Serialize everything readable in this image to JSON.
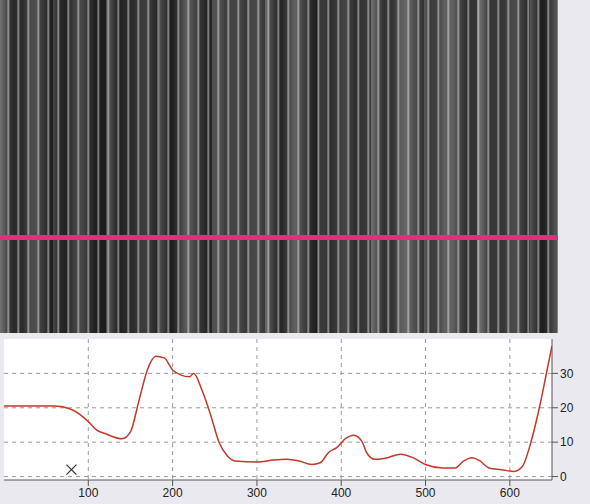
{
  "chart_data": {
    "type": "line",
    "x": [
      0,
      60,
      80,
      100,
      110,
      120,
      140,
      150,
      160,
      170,
      180,
      190,
      200,
      210,
      220,
      225,
      235,
      245,
      255,
      265,
      275,
      300,
      320,
      335,
      350,
      365,
      375,
      385,
      395,
      405,
      415,
      425,
      430,
      440,
      455,
      470,
      485,
      500,
      520,
      535,
      545,
      555,
      565,
      575,
      590,
      605,
      615,
      625,
      635,
      645,
      650
    ],
    "values": [
      20.5,
      20.5,
      19.5,
      16,
      13.5,
      12.5,
      11,
      13,
      22,
      31,
      35,
      34.5,
      31,
      29.5,
      29,
      30,
      25,
      18,
      10,
      6,
      4.5,
      4.2,
      4.8,
      5,
      4.5,
      3.5,
      4,
      7,
      8.5,
      11,
      12,
      10,
      7,
      5,
      5.5,
      6.5,
      5.5,
      3.5,
      2.5,
      2.5,
      4.5,
      5.5,
      4.5,
      2.5,
      2,
      1.5,
      3,
      10,
      20,
      32,
      38
    ],
    "color": "#c0392b",
    "xlim": [
      0,
      650
    ],
    "xticks": [
      100,
      200,
      300,
      400,
      500,
      600
    ],
    "ylim": [
      -1,
      40
    ],
    "yticks": [
      0,
      10,
      20,
      30
    ],
    "grid": true,
    "markers": [
      {
        "x": 80,
        "y": 2,
        "marker": "x"
      }
    ]
  }
}
